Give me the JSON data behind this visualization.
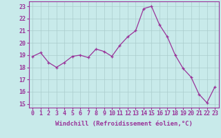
{
  "x": [
    0,
    1,
    2,
    3,
    4,
    5,
    6,
    7,
    8,
    9,
    10,
    11,
    12,
    13,
    14,
    15,
    16,
    17,
    18,
    19,
    20,
    21,
    22,
    23
  ],
  "y": [
    18.9,
    19.2,
    18.4,
    18.0,
    18.4,
    18.9,
    19.0,
    18.8,
    19.5,
    19.3,
    18.9,
    19.8,
    20.5,
    21.0,
    22.8,
    23.0,
    21.5,
    20.5,
    19.0,
    17.9,
    17.2,
    15.8,
    15.1,
    16.4
  ],
  "line_color": "#993399",
  "marker": "+",
  "bg_color": "#c8eaea",
  "grid_color": "#aacccc",
  "xlabel": "Windchill (Refroidissement éolien,°C)",
  "ylabel_ticks": [
    15,
    16,
    17,
    18,
    19,
    20,
    21,
    22,
    23
  ],
  "xtick_labels": [
    "0",
    "1",
    "2",
    "3",
    "4",
    "5",
    "6",
    "7",
    "8",
    "9",
    "10",
    "11",
    "12",
    "13",
    "14",
    "15",
    "16",
    "17",
    "18",
    "19",
    "20",
    "21",
    "22",
    "23"
  ],
  "ylim": [
    14.7,
    23.4
  ],
  "xlim": [
    -0.5,
    23.5
  ],
  "label_fontsize": 6.5,
  "tick_fontsize": 6.0
}
